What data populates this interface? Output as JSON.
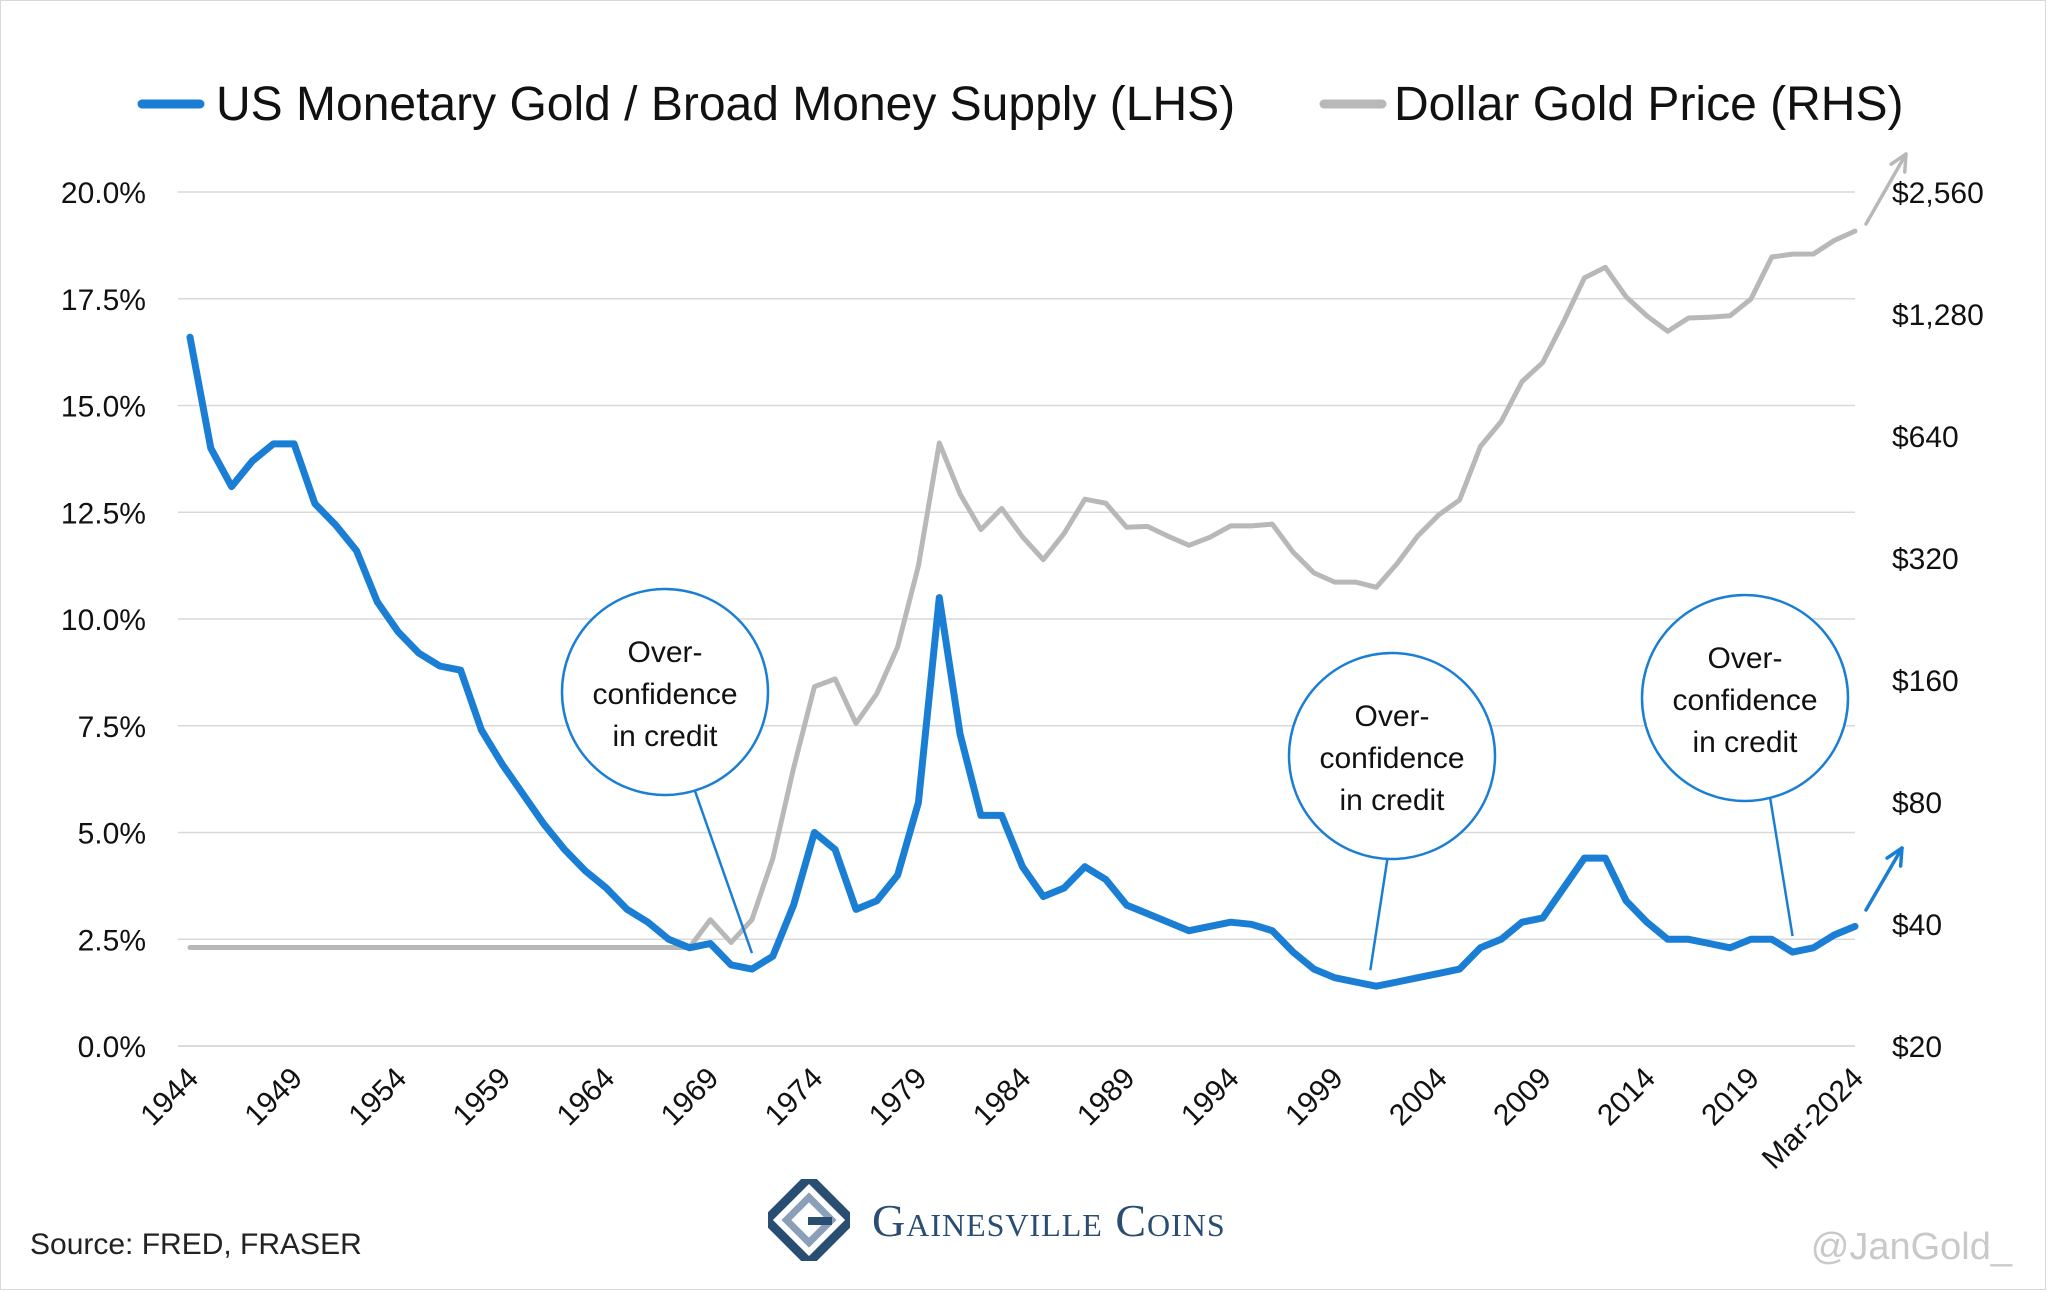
{
  "source_text": "Source: FRED, FRASER",
  "handle_text": "@JanGold_",
  "brand": {
    "name": "Gainesville Coins",
    "logo_icon": "gainesville-g-logo-icon"
  },
  "colors": {
    "series_left": "#1a7fd4",
    "series_right": "#b8b8b8",
    "grid": "#d9d9d9",
    "annotation": "#1a7fd4",
    "brand": "#2a4d72"
  },
  "chart_data": {
    "type": "line",
    "title": "",
    "grid": true,
    "legend_placement": "top",
    "x_tick_labels": [
      "1944",
      "1949",
      "1954",
      "1959",
      "1964",
      "1969",
      "1974",
      "1979",
      "1984",
      "1989",
      "1994",
      "1999",
      "2004",
      "2009",
      "2014",
      "2019",
      "Mar-2024"
    ],
    "y_left": {
      "tick_labels": [
        "0.0%",
        "2.5%",
        "5.0%",
        "7.5%",
        "10.0%",
        "12.5%",
        "15.0%",
        "17.5%",
        "20.0%"
      ],
      "range": [
        0,
        20
      ]
    },
    "y_right": {
      "scale": "log2",
      "tick_labels": [
        "$20",
        "$40",
        "$80",
        "$160",
        "$320",
        "$640",
        "$1,280",
        "$2,560"
      ],
      "range": [
        20,
        2560
      ]
    },
    "series": [
      {
        "name": "US Monetary Gold / Broad Money Supply (LHS)",
        "axis": "left",
        "x": [
          1944,
          1945,
          1946,
          1947,
          1948,
          1949,
          1950,
          1951,
          1952,
          1953,
          1954,
          1955,
          1956,
          1957,
          1958,
          1959,
          1960,
          1961,
          1962,
          1963,
          1964,
          1965,
          1966,
          1967,
          1968,
          1969,
          1970,
          1971,
          1972,
          1973,
          1974,
          1975,
          1976,
          1977,
          1978,
          1979,
          1980,
          1981,
          1982,
          1983,
          1984,
          1985,
          1986,
          1987,
          1988,
          1989,
          1990,
          1991,
          1992,
          1993,
          1994,
          1995,
          1996,
          1997,
          1998,
          1999,
          2000,
          2001,
          2002,
          2003,
          2004,
          2005,
          2006,
          2007,
          2008,
          2009,
          2010,
          2011,
          2012,
          2013,
          2014,
          2015,
          2016,
          2017,
          2018,
          2019,
          2020,
          2021,
          2022,
          2023,
          2024
        ],
        "y": [
          16.6,
          14.0,
          13.1,
          13.7,
          14.1,
          14.1,
          12.7,
          12.2,
          11.6,
          10.4,
          9.7,
          9.2,
          8.9,
          8.8,
          7.4,
          6.6,
          5.9,
          5.2,
          4.6,
          4.1,
          3.7,
          3.2,
          2.9,
          2.5,
          2.3,
          2.4,
          1.9,
          1.8,
          2.1,
          3.3,
          5.0,
          4.6,
          3.2,
          3.4,
          4.0,
          5.7,
          10.5,
          7.3,
          5.4,
          5.4,
          4.2,
          3.5,
          3.7,
          4.2,
          3.9,
          3.3,
          3.1,
          2.9,
          2.7,
          2.8,
          2.9,
          2.85,
          2.7,
          2.2,
          1.8,
          1.6,
          1.5,
          1.4,
          1.5,
          1.6,
          1.7,
          1.8,
          2.3,
          2.5,
          2.9,
          3.0,
          3.7,
          4.4,
          4.4,
          3.4,
          2.9,
          2.5,
          2.5,
          2.4,
          2.3,
          2.5,
          2.5,
          2.2,
          2.3,
          2.6,
          2.8
        ]
      },
      {
        "name": "Dollar Gold Price (RHS)",
        "axis": "right",
        "x": [
          1944,
          1968,
          1969,
          1970,
          1971,
          1972,
          1973,
          1974,
          1975,
          1976,
          1977,
          1978,
          1979,
          1980,
          1981,
          1982,
          1983,
          1984,
          1985,
          1986,
          1987,
          1988,
          1989,
          1990,
          1991,
          1992,
          1993,
          1994,
          1995,
          1996,
          1997,
          1998,
          1999,
          2000,
          2001,
          2002,
          2003,
          2004,
          2005,
          2006,
          2007,
          2008,
          2009,
          2010,
          2011,
          2012,
          2013,
          2014,
          2015,
          2016,
          2017,
          2018,
          2019,
          2020,
          2021,
          2022,
          2023,
          2024
        ],
        "y": [
          35,
          35,
          41,
          36,
          41,
          58,
          97,
          154,
          161,
          125,
          148,
          193,
          306,
          615,
          460,
          376,
          424,
          361,
          317,
          368,
          447,
          437,
          381,
          383,
          362,
          344,
          360,
          384,
          384,
          388,
          331,
          294,
          279,
          279,
          271,
          310,
          363,
          409,
          445,
          603,
          695,
          872,
          972,
          1225,
          1571,
          1669,
          1411,
          1266,
          1160,
          1251,
          1257,
          1268,
          1393,
          1770,
          1799,
          1800,
          1943,
          2050
        ]
      }
    ],
    "annotations": [
      {
        "lines": [
          "Over-",
          "confidence",
          "in credit"
        ],
        "points_to_year": 1971
      },
      {
        "lines": [
          "Over-",
          "confidence",
          "in credit"
        ],
        "points_to_year": 2001
      },
      {
        "lines": [
          "Over-",
          "confidence",
          "in credit"
        ],
        "points_to_year": 2021
      }
    ]
  }
}
